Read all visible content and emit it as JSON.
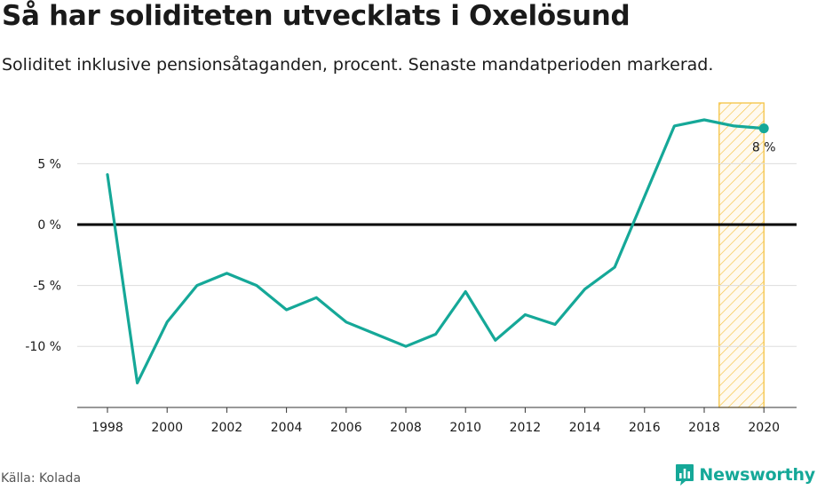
{
  "header": {
    "title": "Så har soliditeten utvecklats i Oxelösund",
    "subtitle": "Soliditet inklusive pensionsåtaganden, procent. Senaste mandatperioden markerad."
  },
  "footer": {
    "source": "Källa: Kolada",
    "brand": "Newsworthy",
    "brand_icon": "newsworthy-logo-icon"
  },
  "colors": {
    "line": "#15a898",
    "zero_line": "#000000",
    "grid": "#dddddd",
    "highlight_stroke": "#f5c242",
    "brand": "#15a898"
  },
  "chart_data": {
    "type": "line",
    "title": "Så har soliditeten utvecklats i Oxelösund",
    "subtitle": "Soliditet inklusive pensionsåtaganden, procent. Senaste mandatperioden markerad.",
    "xlabel": "",
    "ylabel": "",
    "x": [
      1998,
      1999,
      2000,
      2001,
      2002,
      2003,
      2004,
      2005,
      2006,
      2007,
      2008,
      2009,
      2010,
      2011,
      2012,
      2013,
      2014,
      2015,
      2016,
      2017,
      2018,
      2019,
      2020
    ],
    "series": [
      {
        "values": [
          4.1,
          -13.0,
          -8.0,
          -5.0,
          -4.0,
          -5.0,
          -7.0,
          -6.0,
          -8.0,
          -9.0,
          -10.0,
          -9.0,
          -5.5,
          -9.5,
          -7.4,
          -8.2,
          -5.3,
          -3.5,
          2.3,
          8.1,
          8.6,
          8.1,
          7.9
        ]
      }
    ],
    "xlim": [
      1997,
      2021
    ],
    "ylim": [
      -15,
      10
    ],
    "x_ticks": [
      1998,
      2000,
      2002,
      2004,
      2006,
      2008,
      2010,
      2012,
      2014,
      2016,
      2018,
      2020
    ],
    "y_ticks": [
      {
        "value": 5,
        "label": "5 %"
      },
      {
        "value": 0,
        "label": "0 %"
      },
      {
        "value": -5,
        "label": "-5 %"
      },
      {
        "value": -10,
        "label": "-10 %"
      }
    ],
    "highlight_period": [
      2018.5,
      2020
    ],
    "end_label": "8 %",
    "grid": true,
    "legend": "none"
  }
}
